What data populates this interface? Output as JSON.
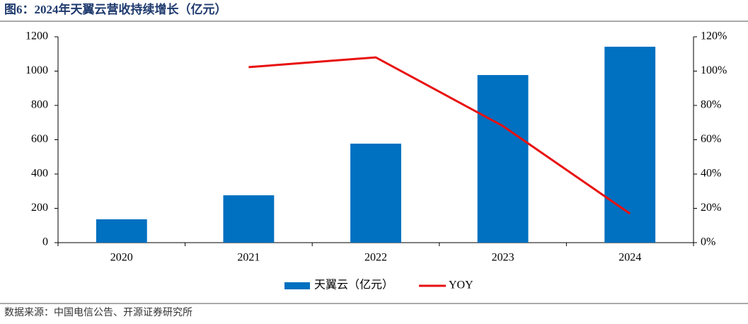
{
  "chart_data": {
    "type": "bar",
    "title": "图6：2024年天翼云营收持续增长（亿元）",
    "source": "数据来源：中国电信公告、开源证券研究所",
    "categories": [
      "2020",
      "2021",
      "2022",
      "2023",
      "2024"
    ],
    "series": [
      {
        "name": "天翼云（亿元）",
        "type": "bar",
        "color": "#0070c0",
        "values": [
          136,
          276,
          577,
          977,
          1142
        ]
      },
      {
        "name": "YOY",
        "type": "line",
        "axis": "y2",
        "color": "#e81010",
        "values": [
          null,
          102.3,
          108,
          68,
          16.9
        ]
      }
    ],
    "ylim": [
      0,
      1200
    ],
    "yticks": [
      0,
      200,
      400,
      600,
      800,
      1000,
      1200
    ],
    "y2lim": [
      0,
      120
    ],
    "y2ticks": [
      {
        "value": 0,
        "label": "0%"
      },
      {
        "value": 20,
        "label": "20%"
      },
      {
        "value": 40,
        "label": "40%"
      },
      {
        "value": 60,
        "label": "60%"
      },
      {
        "value": 80,
        "label": "80%"
      },
      {
        "value": 100,
        "label": "100%"
      },
      {
        "value": 120,
        "label": "120%"
      }
    ],
    "grid": false,
    "legend": "bottom"
  }
}
